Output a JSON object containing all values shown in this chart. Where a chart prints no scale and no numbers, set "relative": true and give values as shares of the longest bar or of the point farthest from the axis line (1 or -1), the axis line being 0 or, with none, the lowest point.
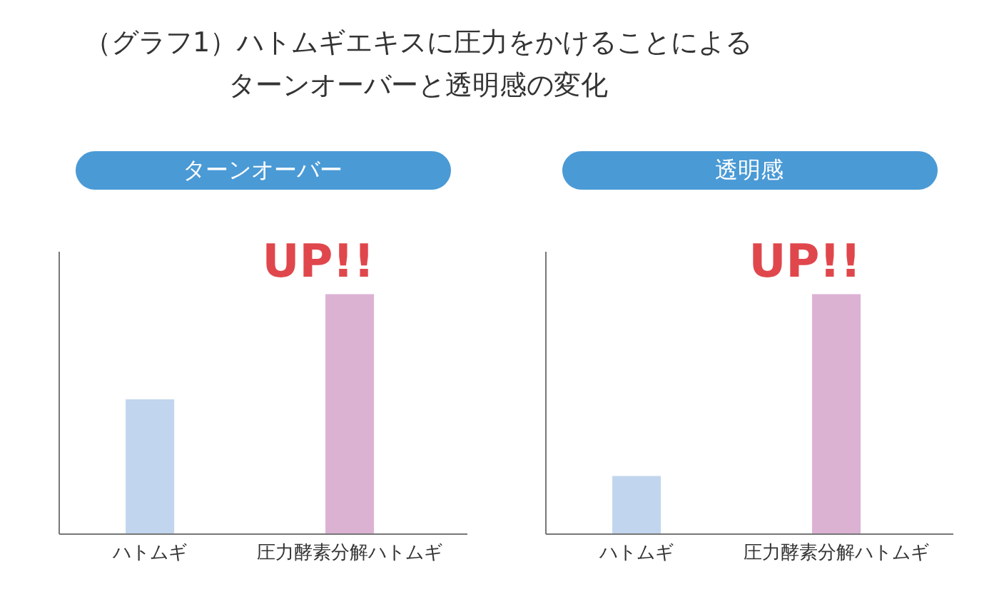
{
  "chart_data": [
    {
      "type": "bar",
      "title": "ターンオーバー",
      "categories": [
        "ハトムギ",
        "圧力酵素分解ハトムギ"
      ],
      "values": [
        0.56,
        1
      ],
      "colors": [
        "#c1d5ee",
        "#dcb2d3"
      ],
      "relative": true,
      "annotations": [
        "（グラフ1）ハトムギエキスに圧力をかけることによる",
        "ターンオーバーと透明感の変化",
        {
          "text": "UP!!",
          "x": "圧力酵素分解ハトムギ",
          "y": 1
        }
      ]
    },
    {
      "type": "bar",
      "title": "透明感",
      "categories": [
        "ハトムギ",
        "圧力酵素分解ハトムギ"
      ],
      "values": [
        0.24,
        1
      ],
      "colors": [
        "#c1d5ee",
        "#dcb2d3"
      ],
      "relative": true,
      "annotations": [
        {
          "text": "UP!!",
          "x": "圧力酵素分解ハトムギ",
          "y": 1
        }
      ]
    }
  ]
}
